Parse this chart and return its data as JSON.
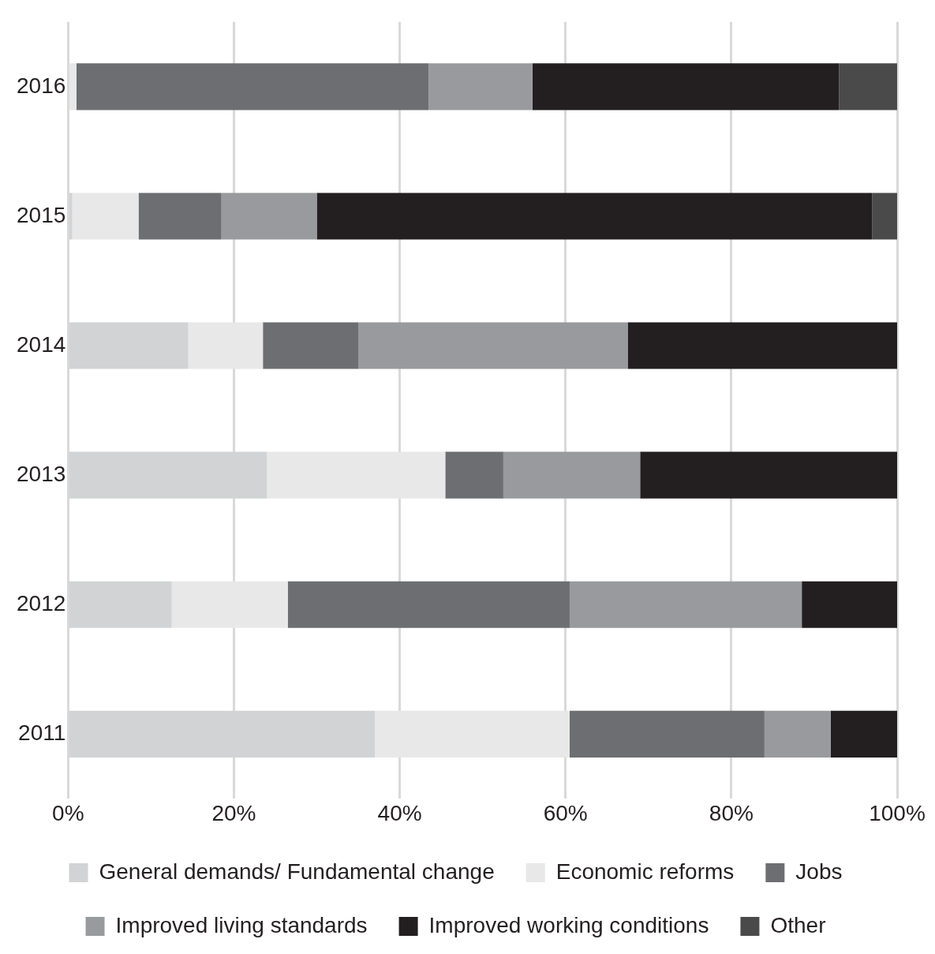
{
  "chart_data": {
    "type": "bar",
    "orientation": "horizontal",
    "stacked": true,
    "categories": [
      "2016",
      "2015",
      "2014",
      "2013",
      "2012",
      "2011"
    ],
    "series": [
      {
        "name": "General demands/ Fundamental change",
        "color": "#d1d3d4",
        "values": [
          0,
          0.5,
          14.5,
          24,
          12.5,
          37
        ]
      },
      {
        "name": "Economic reforms",
        "color": "#e8e8e8",
        "values": [
          1,
          8,
          9,
          21.5,
          14,
          23.5
        ]
      },
      {
        "name": "Jobs",
        "color": "#6d6e71",
        "values": [
          42.5,
          10,
          11.5,
          7,
          34,
          23.5
        ]
      },
      {
        "name": "Improved living standards",
        "color": "#999a9d",
        "values": [
          12.5,
          11.5,
          32.5,
          16.5,
          28,
          8
        ]
      },
      {
        "name": "Improved working conditions",
        "color": "#231f20",
        "values": [
          37,
          67,
          32.5,
          31,
          11.5,
          8
        ]
      },
      {
        "name": "Other",
        "color": "#4a4a4a",
        "values": [
          7,
          3,
          0,
          0,
          0,
          0
        ]
      }
    ],
    "xlim": [
      0,
      100
    ],
    "xticks": [
      {
        "value": 0,
        "label": "0%"
      },
      {
        "value": 20,
        "label": "20%"
      },
      {
        "value": 40,
        "label": "40%"
      },
      {
        "value": 60,
        "label": "60%"
      },
      {
        "value": 80,
        "label": "80%"
      },
      {
        "value": 100,
        "label": "100%"
      }
    ],
    "grid": "x",
    "legend": "bottom"
  }
}
